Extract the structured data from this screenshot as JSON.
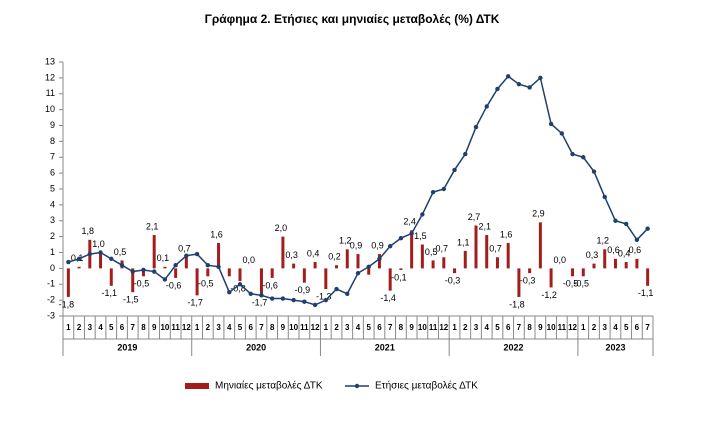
{
  "chart_data": {
    "type": "bar_line",
    "title": "Γράφημα 2. Ετήσιες και μηνιαίες μεταβολές (%) ΔΤΚ",
    "categories": [
      "1",
      "2",
      "3",
      "4",
      "5",
      "6",
      "7",
      "8",
      "9",
      "10",
      "11",
      "12",
      "1",
      "2",
      "3",
      "4",
      "5",
      "6",
      "7",
      "8",
      "9",
      "10",
      "11",
      "12",
      "1",
      "2",
      "3",
      "4",
      "5",
      "6",
      "7",
      "8",
      "9",
      "10",
      "11",
      "12",
      "1",
      "2",
      "3",
      "4",
      "5",
      "6",
      "7",
      "8",
      "9",
      "10",
      "11",
      "12",
      "1",
      "2",
      "3",
      "4",
      "5",
      "6",
      "7"
    ],
    "years": [
      "2019",
      "2020",
      "2021",
      "2022",
      "2023"
    ],
    "series": [
      {
        "name": "Μηνιαίες μεταβολές ΔΤΚ",
        "type": "bar",
        "color": "#a31d1d",
        "values": [
          -1.8,
          0.1,
          1.8,
          1.0,
          -1.1,
          0.5,
          -1.5,
          -0.5,
          2.1,
          0.1,
          -0.6,
          0.7,
          -1.7,
          -0.5,
          1.6,
          -0.5,
          -0.8,
          0.0,
          -1.7,
          -0.6,
          2.0,
          0.3,
          -0.9,
          0.4,
          -1.3,
          0.2,
          1.2,
          0.9,
          -0.4,
          0.9,
          -1.4,
          -0.1,
          2.4,
          1.5,
          0.5,
          0.7,
          -0.3,
          1.1,
          2.7,
          2.1,
          0.7,
          1.6,
          -1.8,
          -0.3,
          2.9,
          -1.2,
          0.0,
          -0.5,
          -0.5,
          0.3,
          1.2,
          0.6,
          0.4,
          0.6,
          -1.1
        ],
        "value_labels": [
          "-1,8",
          "0,1",
          "1,8",
          "1,0",
          "-1,1",
          "0,5",
          "-1,5",
          "-0,5",
          "2,1",
          "0,1",
          "-0,6",
          "0,7",
          "-1,7",
          "-0,5",
          "1,6",
          null,
          "-0,8",
          "0,0",
          "-1,7",
          "-0,6",
          "2,0",
          "0,3",
          "-0,9",
          "0,4",
          "-1,3",
          "0,2",
          "1,2",
          "0,9",
          null,
          "0,9",
          "-1,4",
          "-0,1",
          "2,4",
          "1,5",
          "0,5",
          "0,7",
          "-0,3",
          "1,1",
          "2,7",
          "2,1",
          "0,7",
          "1,6",
          "-1,8",
          "-0,3",
          "2,9",
          "-1,2",
          "0,0",
          "-0,5",
          "-0,5",
          "0,3",
          "1,2",
          "0,6",
          "0,4",
          "0,6",
          "-1,1"
        ]
      },
      {
        "name": "Ετήσιες μεταβολές ΔΤΚ",
        "type": "line",
        "color": "#1f3f6e",
        "values": [
          0.4,
          0.6,
          0.9,
          1.0,
          0.6,
          0.2,
          -0.2,
          -0.1,
          -0.2,
          -0.7,
          0.2,
          0.8,
          0.9,
          0.2,
          0.1,
          -1.5,
          -1.0,
          -1.6,
          -1.7,
          -1.9,
          -1.9,
          -2.0,
          -2.1,
          -2.3,
          -2.0,
          -1.3,
          -1.6,
          -0.3,
          0.1,
          0.6,
          1.4,
          1.9,
          2.2,
          3.4,
          4.8,
          5.0,
          6.2,
          7.2,
          8.9,
          10.2,
          11.3,
          12.1,
          11.6,
          11.4,
          12.0,
          9.1,
          8.5,
          7.2,
          7.0,
          6.1,
          4.5,
          3.0,
          2.8,
          1.8,
          2.5
        ]
      }
    ],
    "ylim": [
      -3,
      13
    ],
    "yticks": [
      -3,
      -2,
      -1,
      0,
      1,
      2,
      3,
      4,
      5,
      6,
      7,
      8,
      9,
      10,
      11,
      12,
      13
    ],
    "grid": false
  }
}
